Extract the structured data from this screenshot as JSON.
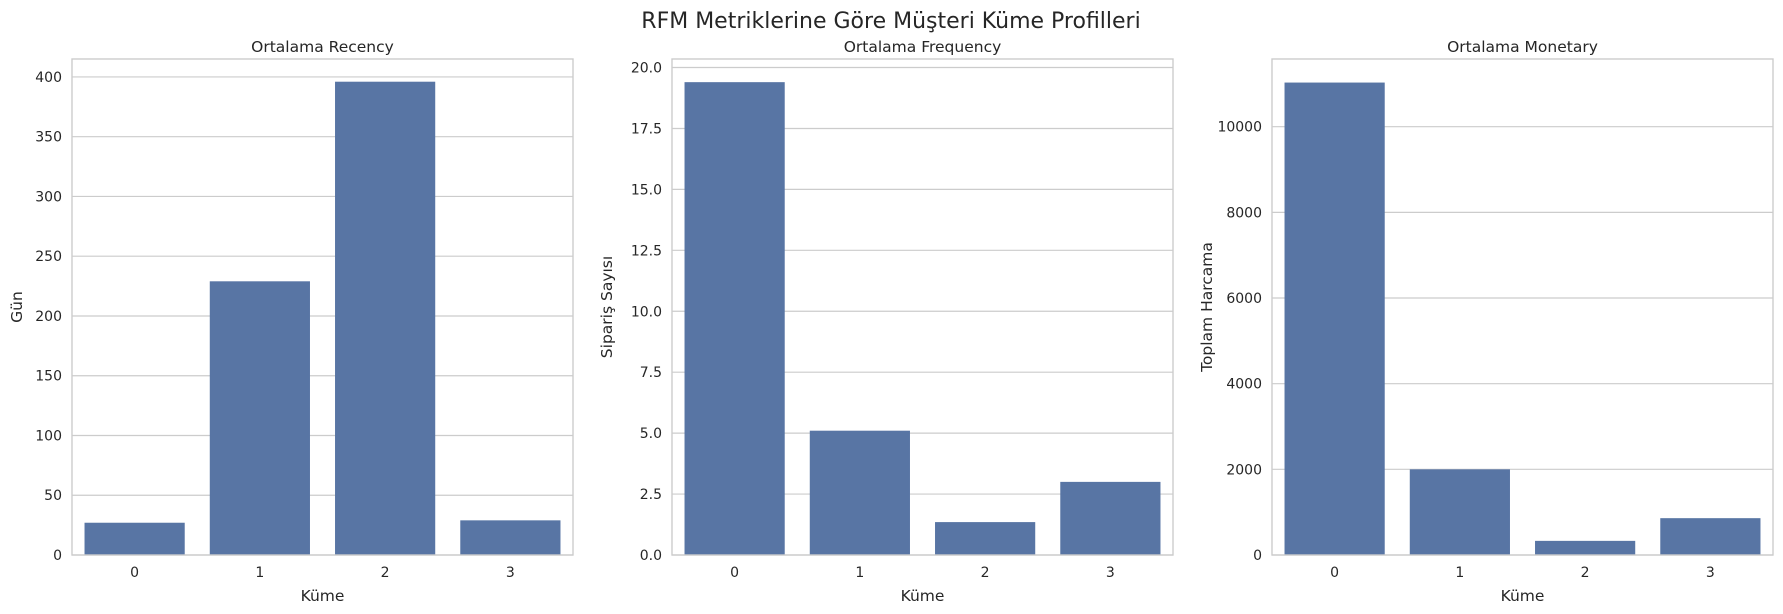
{
  "suptitle": "RFM Metriklerine Göre Müşteri Küme Profilleri",
  "bar_color": "#5875a4",
  "grid_color": "#cccccc",
  "chart_data": [
    {
      "type": "bar",
      "title": "Ortalama Recency",
      "xlabel": "Küme",
      "ylabel": "Gün",
      "categories": [
        "0",
        "1",
        "2",
        "3"
      ],
      "values": [
        27,
        229,
        396,
        29
      ],
      "ylim": [
        0,
        415
      ],
      "yticks": [
        0,
        50,
        100,
        150,
        200,
        250,
        300,
        350,
        400
      ],
      "ytick_labels": [
        "0",
        "50",
        "100",
        "150",
        "200",
        "250",
        "300",
        "350",
        "400"
      ],
      "grid": true
    },
    {
      "type": "bar",
      "title": "Ortalama Frequency",
      "xlabel": "Küme",
      "ylabel": "Sipariş Sayısı",
      "categories": [
        "0",
        "1",
        "2",
        "3"
      ],
      "values": [
        19.4,
        5.1,
        1.35,
        3.0
      ],
      "ylim": [
        0,
        20.35
      ],
      "yticks": [
        0,
        2.5,
        5,
        7.5,
        10,
        12.5,
        15,
        17.5,
        20
      ],
      "ytick_labels": [
        "0.0",
        "2.5",
        "5.0",
        "7.5",
        "10.0",
        "12.5",
        "15.0",
        "17.5",
        "20.0"
      ],
      "grid": true
    },
    {
      "type": "bar",
      "title": "Ortalama Monetary",
      "xlabel": "Küme",
      "ylabel": "Toplam Harcama",
      "categories": [
        "0",
        "1",
        "2",
        "3"
      ],
      "values": [
        11030,
        2000,
        330,
        860
      ],
      "ylim": [
        0,
        11580
      ],
      "yticks": [
        0,
        2000,
        4000,
        6000,
        8000,
        10000
      ],
      "ytick_labels": [
        "0",
        "2000",
        "4000",
        "6000",
        "8000",
        "10000"
      ],
      "grid": true
    }
  ]
}
